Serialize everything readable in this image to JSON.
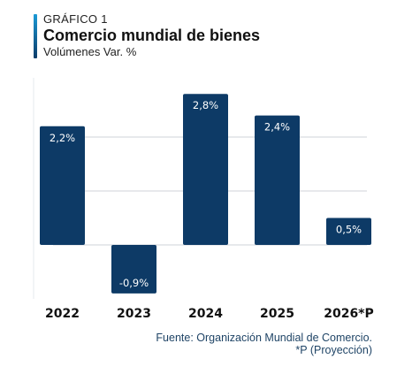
{
  "header": {
    "kicker": "GRÁFICO 1",
    "title": "Comercio mundial de bienes",
    "subtitle": "Volúmenes Var. %"
  },
  "footer": {
    "source": "Fuente: Organización Mundial de Comercio.",
    "note": "*P (Proyección)"
  },
  "colors": {
    "bar": "#0d3a66",
    "grid": "#cfd3d8",
    "label_text": "#ffffff",
    "tick_text": "#111111",
    "accent_top": "#1b9ad6",
    "accent_bottom": "#0c3c69"
  },
  "chart_data": {
    "type": "bar",
    "categories": [
      "2022",
      "2023",
      "2024",
      "2025",
      "2026*P"
    ],
    "values": [
      2.2,
      -0.9,
      2.8,
      2.4,
      0.5
    ],
    "data_labels": [
      "2,2%",
      "-0,9%",
      "2,8%",
      "2,4%",
      "0,5%"
    ],
    "ylim": [
      -1,
      3
    ],
    "grid": true,
    "title": "Comercio mundial de bienes",
    "xlabel": "",
    "ylabel": ""
  }
}
